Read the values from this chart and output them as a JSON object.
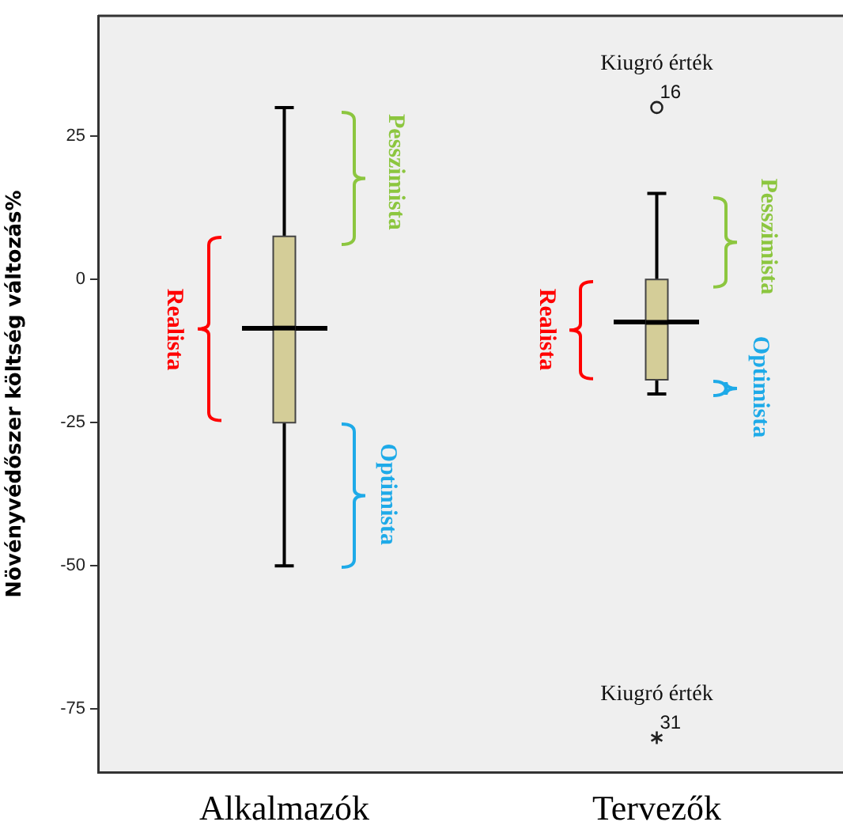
{
  "chart_data": {
    "type": "box",
    "ylabel": "Növényvédőszer költség változás%",
    "categories": [
      "Alkalmazók",
      "Tervezők"
    ],
    "color": "#d4cd98",
    "boxes": [
      {
        "low": -50,
        "q1": -25,
        "median": -8.5,
        "q3": 7.5,
        "high": 30
      },
      {
        "low": -20,
        "q1": -17.5,
        "median": -7.5,
        "q3": 0,
        "high": 15,
        "outliers": [
          30,
          -80
        ]
      }
    ],
    "ylim": [
      -86,
      46
    ],
    "yticks": [
      25,
      0,
      -25,
      -50,
      -75
    ],
    "grid": false,
    "legend": false,
    "annotations": [
      "Kiugró érték",
      "16",
      "Kiugró érték",
      "31",
      "Realista",
      "Pesszimista",
      "Optimista",
      "Realista",
      "Pesszimista",
      "Optimista"
    ]
  }
}
